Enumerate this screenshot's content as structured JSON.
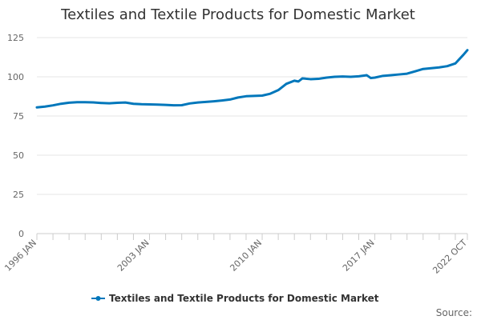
{
  "chart_data": {
    "type": "line",
    "title": "Textiles and Textile Products for Domestic Market",
    "xlabel": "",
    "ylabel": "",
    "x_tick_labels": [
      "1996 JAN",
      "2003 JAN",
      "2010 JAN",
      "2017 JAN",
      "2022 OCT"
    ],
    "y_ticks": [
      0,
      25,
      50,
      75,
      100,
      125
    ],
    "ylim": [
      0,
      125
    ],
    "xlim": [
      "1996-01",
      "2022-10"
    ],
    "grid": "horizontal",
    "legend": "bottom-center",
    "credits": "Source:",
    "series": [
      {
        "name": "Textiles and Textile Products for Domestic Market",
        "color": "#0077bb",
        "points": [
          [
            "1996-01",
            80.5
          ],
          [
            "1996-07",
            81.0
          ],
          [
            "1997-01",
            81.8
          ],
          [
            "1997-07",
            82.8
          ],
          [
            "1998-01",
            83.5
          ],
          [
            "1998-07",
            83.8
          ],
          [
            "1999-01",
            83.8
          ],
          [
            "1999-07",
            83.7
          ],
          [
            "2000-01",
            83.3
          ],
          [
            "2000-07",
            83.1
          ],
          [
            "2001-01",
            83.4
          ],
          [
            "2001-07",
            83.6
          ],
          [
            "2002-01",
            82.8
          ],
          [
            "2002-07",
            82.5
          ],
          [
            "2003-01",
            82.4
          ],
          [
            "2003-07",
            82.3
          ],
          [
            "2004-01",
            82.1
          ],
          [
            "2004-07",
            81.8
          ],
          [
            "2005-01",
            81.9
          ],
          [
            "2005-07",
            83.0
          ],
          [
            "2006-01",
            83.6
          ],
          [
            "2006-07",
            84.0
          ],
          [
            "2007-01",
            84.4
          ],
          [
            "2007-07",
            84.9
          ],
          [
            "2008-01",
            85.5
          ],
          [
            "2008-07",
            86.8
          ],
          [
            "2009-01",
            87.6
          ],
          [
            "2009-07",
            87.8
          ],
          [
            "2010-01",
            88.0
          ],
          [
            "2010-07",
            89.2
          ],
          [
            "2011-01",
            91.5
          ],
          [
            "2011-07",
            95.5
          ],
          [
            "2012-01",
            97.5
          ],
          [
            "2012-04",
            97.0
          ],
          [
            "2012-07",
            99.0
          ],
          [
            "2013-01",
            98.5
          ],
          [
            "2013-07",
            98.7
          ],
          [
            "2014-01",
            99.5
          ],
          [
            "2014-07",
            100.0
          ],
          [
            "2015-01",
            100.2
          ],
          [
            "2015-07",
            100.0
          ],
          [
            "2016-01",
            100.3
          ],
          [
            "2016-07",
            101.0
          ],
          [
            "2016-10",
            99.2
          ],
          [
            "2017-01",
            99.5
          ],
          [
            "2017-07",
            100.6
          ],
          [
            "2018-01",
            101.0
          ],
          [
            "2018-07",
            101.5
          ],
          [
            "2019-01",
            102.0
          ],
          [
            "2019-07",
            103.5
          ],
          [
            "2020-01",
            105.0
          ],
          [
            "2020-07",
            105.5
          ],
          [
            "2021-01",
            106.0
          ],
          [
            "2021-07",
            106.8
          ],
          [
            "2022-01",
            108.5
          ],
          [
            "2022-07",
            114.0
          ],
          [
            "2022-10",
            117.0
          ]
        ]
      }
    ]
  }
}
